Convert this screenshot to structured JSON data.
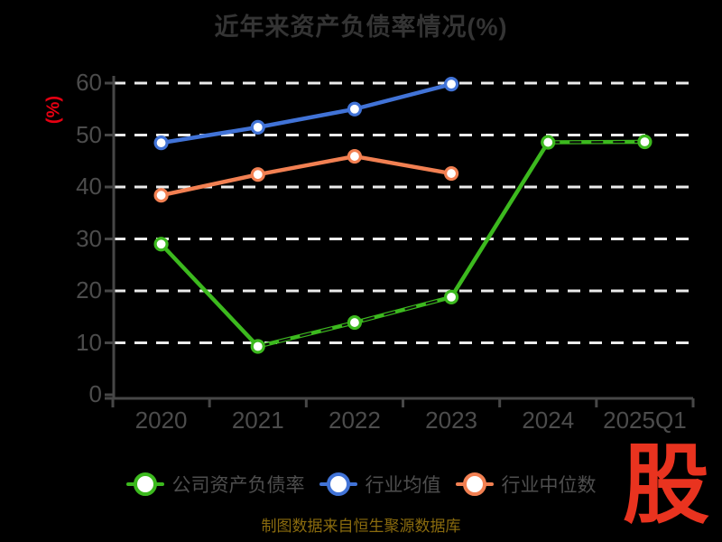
{
  "title": "近年来资产负债率情况(%)",
  "y_axis_unit": "(%)",
  "source_note": "制图数据来自恒生聚源数据库",
  "watermark_text": "股",
  "colors": {
    "background": "#000000",
    "title_text": "#343434",
    "axis_line": "#474747",
    "tick_label": "#4c4c4c",
    "gridline": "#ebebeb",
    "legend_text": "#4e4e4e",
    "unit_label": "#e60012",
    "source_text": "#8a6b0e",
    "watermark": "#e9331f",
    "marker_fill": "#ffffff",
    "company": "#3cb91e",
    "industry_avg": "#4173d7",
    "industry_median": "#f28052"
  },
  "chart_data": {
    "type": "line",
    "title": "近年来资产负债率情况(%)",
    "xlabel": "",
    "ylabel": "(%)",
    "categories": [
      "2020",
      "2021",
      "2022",
      "2023",
      "2024",
      "2025Q1"
    ],
    "series": [
      {
        "name": "公司资产负债率",
        "color_key": "company",
        "values": [
          29.0,
          9.3,
          13.9,
          18.8,
          48.6,
          48.7
        ]
      },
      {
        "name": "行业均值",
        "color_key": "industry_avg",
        "values": [
          48.5,
          51.5,
          55.0,
          59.8,
          null,
          null
        ]
      },
      {
        "name": "行业中位数",
        "color_key": "industry_median",
        "values": [
          38.4,
          42.4,
          45.9,
          42.6,
          null,
          null
        ]
      }
    ],
    "ylim": [
      0,
      60
    ],
    "yticks": [
      0,
      10,
      20,
      30,
      40,
      50,
      60
    ],
    "grid": true,
    "grid_style": "dashed",
    "legend_position": "bottom"
  }
}
